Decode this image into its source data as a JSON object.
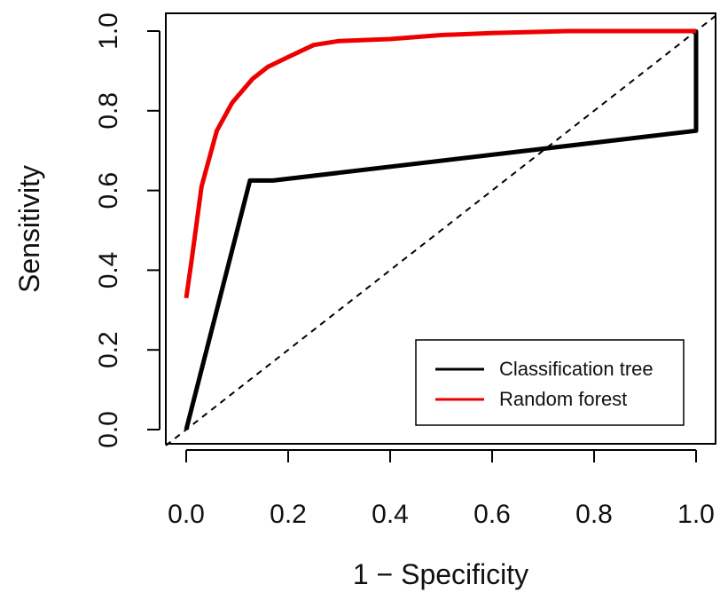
{
  "chart_data": {
    "type": "line",
    "title": "",
    "xlabel": "1 − Specificity",
    "ylabel": "Sensitivity",
    "xlim": [
      0,
      1
    ],
    "ylim": [
      0,
      1
    ],
    "x_ticks": [
      "0.0",
      "0.2",
      "0.4",
      "0.6",
      "0.8",
      "1.0"
    ],
    "y_ticks": [
      "0.0",
      "0.2",
      "0.4",
      "0.6",
      "0.8",
      "1.0"
    ],
    "grid": false,
    "legend_position": "bottom-right",
    "reference_line": {
      "style": "dashed",
      "from": [
        0,
        0
      ],
      "to": [
        1,
        1
      ]
    },
    "series": [
      {
        "name": "Classification tree",
        "color": "#000000",
        "points": [
          [
            0.0,
            0.0
          ],
          [
            0.125,
            0.625
          ],
          [
            0.17,
            0.625
          ],
          [
            1.0,
            0.75
          ],
          [
            1.0,
            1.0
          ]
        ]
      },
      {
        "name": "Random forest",
        "color": "#ee0000",
        "points": [
          [
            0.0,
            0.33
          ],
          [
            0.01,
            0.42
          ],
          [
            0.03,
            0.61
          ],
          [
            0.06,
            0.75
          ],
          [
            0.09,
            0.82
          ],
          [
            0.13,
            0.88
          ],
          [
            0.16,
            0.91
          ],
          [
            0.2,
            0.935
          ],
          [
            0.25,
            0.965
          ],
          [
            0.3,
            0.975
          ],
          [
            0.4,
            0.98
          ],
          [
            0.5,
            0.99
          ],
          [
            0.6,
            0.995
          ],
          [
            0.75,
            1.0
          ],
          [
            1.0,
            1.0
          ]
        ]
      }
    ]
  }
}
